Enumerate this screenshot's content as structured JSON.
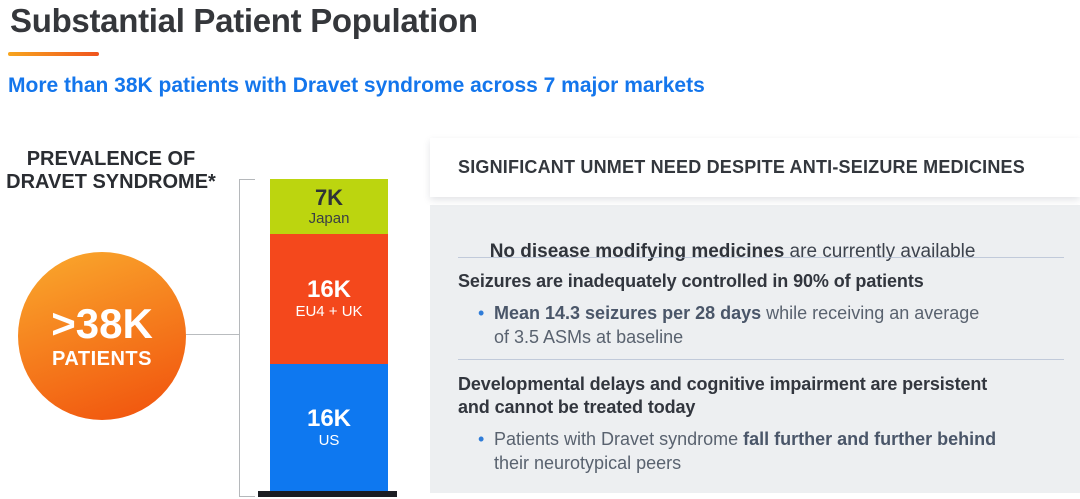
{
  "slide": {
    "title": "Substantial Patient Population",
    "subtitle": "More than 38K patients with Dravet syndrome across 7 major markets"
  },
  "colors": {
    "title_text": "#35373B",
    "subtitle_blue": "#1476EC",
    "underline_gradient": [
      "#F7A51E",
      "#F0531D"
    ],
    "circle_gradient": [
      "#F9A12A",
      "#F1540E"
    ],
    "bar_green": "#BCD50F",
    "bar_orange": "#F4481C",
    "bar_blue": "#0E78F0",
    "baseline_dark": "#1B1E23",
    "panel_bg": "#EDEFF1",
    "divider": "#A9B5CE",
    "bullet_dot_blue": "#2F7CD8"
  },
  "prevalence": {
    "heading": "PREVALENCE OF\nDRAVET SYNDROME*",
    "circle_value": ">38K",
    "circle_label": "PATIENTS"
  },
  "chart_data": {
    "type": "bar",
    "stacked": true,
    "title": "PREVALENCE OF DRAVET SYNDROME*",
    "total_label": ">38K PATIENTS",
    "total_value": 38000,
    "segments": [
      {
        "value_label": "7K",
        "region": "Japan",
        "value": 7000,
        "color": "#BCD50F",
        "order": "top"
      },
      {
        "value_label": "16K",
        "region": "EU4 + UK",
        "value": 16000,
        "color": "#F4481C",
        "order": "middle"
      },
      {
        "value_label": "16K",
        "region": "US",
        "value": 16000,
        "color": "#0E78F0",
        "order": "bottom"
      }
    ]
  },
  "panel": {
    "header": "SIGNIFICANT UNMET NEED DESPITE ANTI-SEIZURE MEDICINES",
    "point1": {
      "bold": "No disease modifying medicines",
      "rest": " are currently available"
    },
    "point2": {
      "heading": "Seizures are inadequately controlled in 90% of patients",
      "bullet_bold": "Mean 14.3 seizures per 28 days",
      "bullet_rest": " while receiving an average\nof 3.5 ASMs at baseline"
    },
    "point3": {
      "heading": "Developmental delays and cognitive impairment are persistent\nand cannot be treated today",
      "bullet_pre": "Patients with Dravet syndrome ",
      "bullet_bold": "fall further and further behind",
      "bullet_post": "\ntheir neurotypical peers"
    }
  }
}
